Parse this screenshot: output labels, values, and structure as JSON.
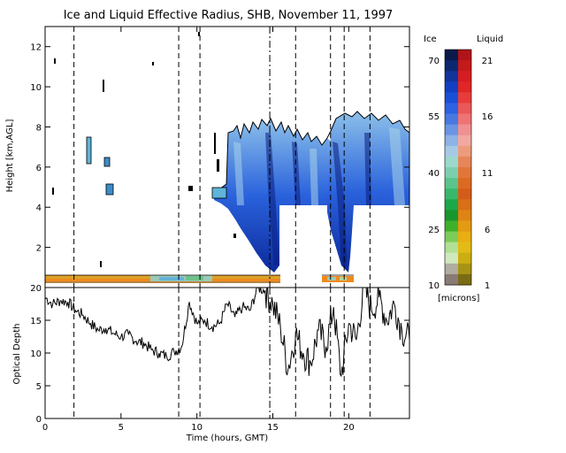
{
  "title": "Ice and Liquid Effective Radius, SHB, November 11, 1997",
  "chart_data": [
    {
      "type": "heatmap",
      "ylabel": "Height [km,AGL]",
      "xlim": [
        0,
        24
      ],
      "ylim": [
        0,
        13
      ],
      "yticks": [
        "2",
        "4",
        "6",
        "8",
        "10",
        "12"
      ],
      "dashed_event_times": [
        1.9,
        8.8,
        10.2,
        16.5,
        18.8,
        19.7,
        21.4
      ],
      "dashdot_event_times": [
        14.8
      ],
      "cloud_regions": [
        {
          "name": "ice cloud",
          "x": [
            13.0,
            24.0
          ],
          "y": [
            4.0,
            8.6
          ]
        },
        {
          "name": "liquid cloud layer",
          "x": [
            0.0,
            15.3
          ],
          "y": [
            0.0,
            0.5
          ]
        },
        {
          "name": "clear gap",
          "x": [
            15.5,
            18.8
          ],
          "y": [
            0.0,
            4.0
          ]
        }
      ]
    },
    {
      "type": "line",
      "xlabel": "Time (hours, GMT)",
      "ylabel": "Optical Depth",
      "xlim": [
        0,
        24
      ],
      "ylim": [
        0,
        20
      ],
      "xticks": [
        "0",
        "5",
        "10",
        "15",
        "20"
      ],
      "yticks": [
        "0",
        "5",
        "10",
        "15",
        "20"
      ],
      "series": [
        {
          "x": [
            0.0,
            0.5,
            1.0,
            1.5,
            2.0,
            2.5,
            3.0,
            3.5,
            4.0,
            4.5,
            5.0,
            5.5,
            6.0,
            6.5,
            7.0,
            7.5,
            8.0,
            8.5,
            9.0,
            9.5,
            10.0,
            10.5,
            11.0,
            11.5,
            12.0,
            12.5,
            13.0,
            13.5,
            14.0,
            14.5,
            15.0,
            15.5,
            16.0,
            16.5,
            17.0,
            17.5,
            18.0,
            18.5,
            19.0,
            19.5,
            20.0,
            20.5,
            21.0,
            21.5,
            22.0,
            22.5,
            23.0,
            23.5,
            24.0
          ],
          "values": [
            18.5,
            17.5,
            18.0,
            17.8,
            16.5,
            15.8,
            14.5,
            13.5,
            13.8,
            13.0,
            12.5,
            12.8,
            11.8,
            11.5,
            10.5,
            10.0,
            9.5,
            10.2,
            11.0,
            17.8,
            14.5,
            15.0,
            14.0,
            14.5,
            17.5,
            15.5,
            17.0,
            16.5,
            20.0,
            19.5,
            17.5,
            14.0,
            7.5,
            13.0,
            10.0,
            8.5,
            13.5,
            11.0,
            17.0,
            6.5,
            14.5,
            12.0,
            20.0,
            16.5,
            18.5,
            15.0,
            17.5,
            13.5,
            12.0
          ]
        }
      ]
    }
  ],
  "colorbar": {
    "left_label": "Ice",
    "right_label": "Liquid",
    "units": "[microns]",
    "ice_ticks": [
      "70",
      "55",
      "40",
      "25",
      "10"
    ],
    "liquid_ticks": [
      "21",
      "16",
      "11",
      "6",
      "1"
    ],
    "ice_colors": [
      "#0a1a4a",
      "#0d2870",
      "#10349a",
      "#1240c0",
      "#1a4fd8",
      "#2c62e0",
      "#4878e0",
      "#6a94e4",
      "#8cb2e6",
      "#a6cae6",
      "#9cd8cc",
      "#7ccfae",
      "#5ac48c",
      "#38b86a",
      "#1ca84a",
      "#1a962e",
      "#40b02a",
      "#7ccc5a",
      "#b2e094",
      "#cfe8bc",
      "#b0ada0",
      "#8a7a74"
    ],
    "liquid_colors": [
      "#b01418",
      "#c41a1c",
      "#d61e22",
      "#e02626",
      "#e83c3c",
      "#ec5858",
      "#ee7474",
      "#f09090",
      "#f2a8a0",
      "#ec9c7c",
      "#e6865a",
      "#e2763a",
      "#dc6a22",
      "#d45c1a",
      "#d87016",
      "#de8414",
      "#e49a12",
      "#e8ae12",
      "#e2bc14",
      "#ccae12",
      "#a89414",
      "#7a6c14"
    ]
  },
  "colors": {
    "frame": "#000000",
    "liquid_layer": "#f08a1c"
  }
}
